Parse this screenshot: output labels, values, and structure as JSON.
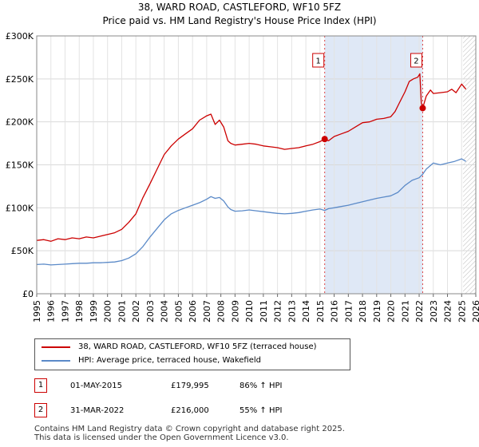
{
  "header": {
    "title": "38, WARD ROAD, CASTLEFORD, WF10 5FZ",
    "subtitle": "Price paid vs. HM Land Registry's House Price Index (HPI)"
  },
  "chart_data": {
    "type": "line",
    "title": "38, WARD ROAD, CASTLEFORD, WF10 5FZ",
    "subtitle": "Price paid vs. HM Land Registry's House Price Index (HPI)",
    "xlim": [
      1995,
      2026
    ],
    "ylim": [
      0,
      300000
    ],
    "x_ticks": [
      1995,
      1996,
      1997,
      1998,
      1999,
      2000,
      2001,
      2002,
      2003,
      2004,
      2005,
      2006,
      2007,
      2008,
      2009,
      2010,
      2011,
      2012,
      2013,
      2014,
      2015,
      2016,
      2017,
      2018,
      2019,
      2020,
      2021,
      2022,
      2023,
      2024,
      2025,
      2026
    ],
    "x_tick_labels": [
      "1995",
      "1996",
      "1997",
      "1998",
      "1999",
      "2000",
      "2001",
      "2002",
      "2003",
      "2004",
      "2005",
      "2006",
      "2007",
      "2008",
      "2009",
      "2010",
      "2011",
      "2012",
      "2013",
      "2014",
      "2015",
      "2016",
      "2017",
      "2018",
      "2019",
      "2020",
      "2021",
      "2022",
      "2023",
      "2024",
      "2025",
      "2026"
    ],
    "y_ticks": [
      0,
      50000,
      100000,
      150000,
      200000,
      250000,
      300000
    ],
    "y_tick_labels": [
      "£0",
      "£50K",
      "£100K",
      "£150K",
      "£200K",
      "£250K",
      "£300K"
    ],
    "grid": true,
    "shaded_period": [
      2015.33,
      2022.25
    ],
    "hatched_from": 2025.1,
    "series": [
      {
        "name": "38, WARD ROAD, CASTLEFORD, WF10 5FZ (terraced house)",
        "color": "#cc0000",
        "x": [
          1995,
          1995.5,
          1996,
          1996.5,
          1997,
          1997.5,
          1998,
          1998.5,
          1999,
          1999.5,
          2000,
          2000.5,
          2001,
          2001.5,
          2002,
          2002.5,
          2003,
          2003.5,
          2004,
          2004.5,
          2005,
          2005.5,
          2006,
          2006.5,
          2007,
          2007.3,
          2007.6,
          2007.9,
          2008.2,
          2008.5,
          2008.7,
          2009,
          2009.5,
          2010,
          2010.5,
          2011,
          2011.5,
          2012,
          2012.5,
          2013,
          2013.5,
          2014,
          2014.5,
          2015,
          2015.33,
          2015.6,
          2016,
          2016.5,
          2017,
          2017.5,
          2018,
          2018.5,
          2019,
          2019.5,
          2020,
          2020.3,
          2020.6,
          2021,
          2021.3,
          2021.6,
          2021.9,
          2022.05,
          2022.15,
          2022.25,
          2022.5,
          2022.8,
          2023,
          2023.5,
          2024,
          2024.3,
          2024.6,
          2025,
          2025.3
        ],
        "y": [
          62000,
          63000,
          61000,
          64000,
          63000,
          65000,
          64000,
          66000,
          65000,
          67000,
          69000,
          71000,
          75000,
          83000,
          93000,
          112000,
          128000,
          145000,
          162000,
          172000,
          180000,
          186000,
          192000,
          202000,
          207000,
          209000,
          197000,
          202000,
          194000,
          178000,
          175000,
          173000,
          174000,
          175000,
          174000,
          172000,
          171000,
          170000,
          168000,
          169000,
          170000,
          172000,
          174000,
          177000,
          179995,
          178000,
          183000,
          186000,
          189000,
          194000,
          199000,
          200000,
          203000,
          204000,
          206000,
          212000,
          222000,
          235000,
          247000,
          250000,
          252000,
          256000,
          222000,
          216000,
          230000,
          237000,
          233000,
          234000,
          235000,
          238000,
          234000,
          244000,
          238000
        ]
      },
      {
        "name": "HPI: Average price, terraced house, Wakefield",
        "color": "#5b8ac8",
        "x": [
          1995,
          1995.5,
          1996,
          1996.5,
          1997,
          1997.5,
          1998,
          1998.5,
          1999,
          1999.5,
          2000,
          2000.5,
          2001,
          2001.5,
          2002,
          2002.5,
          2003,
          2003.5,
          2004,
          2004.5,
          2005,
          2005.5,
          2006,
          2006.5,
          2007,
          2007.3,
          2007.6,
          2007.9,
          2008.2,
          2008.5,
          2008.7,
          2009,
          2009.5,
          2010,
          2010.5,
          2011,
          2011.5,
          2012,
          2012.5,
          2013,
          2013.5,
          2014,
          2014.5,
          2015,
          2015.33,
          2015.6,
          2016,
          2016.5,
          2017,
          2017.5,
          2018,
          2018.5,
          2019,
          2019.5,
          2020,
          2020.5,
          2021,
          2021.5,
          2022,
          2022.25,
          2022.5,
          2023,
          2023.5,
          2024,
          2024.5,
          2025,
          2025.3
        ],
        "y": [
          34000,
          34500,
          33500,
          34000,
          34500,
          35000,
          35500,
          35500,
          36000,
          36000,
          36500,
          37000,
          38500,
          41500,
          46500,
          55000,
          66000,
          76000,
          86000,
          93000,
          97000,
          100000,
          103000,
          106000,
          110000,
          113000,
          111000,
          112000,
          108000,
          101000,
          98000,
          96000,
          96500,
          97500,
          96500,
          95500,
          94500,
          93500,
          93000,
          93500,
          94500,
          96000,
          97500,
          98500,
          97000,
          99000,
          100000,
          101500,
          103000,
          105000,
          107000,
          109000,
          111000,
          112500,
          114000,
          118000,
          126000,
          132000,
          135000,
          139000,
          145000,
          152000,
          150000,
          152000,
          154000,
          157000,
          154000
        ]
      }
    ],
    "sales": [
      {
        "label": "1",
        "x": 2015.33,
        "y": 179995
      },
      {
        "label": "2",
        "x": 2022.25,
        "y": 216000
      }
    ]
  },
  "legend": {
    "items": [
      {
        "label": "38, WARD ROAD, CASTLEFORD, WF10 5FZ (terraced house)",
        "color": "#cc0000"
      },
      {
        "label": "HPI: Average price, terraced house, Wakefield",
        "color": "#5b8ac8"
      }
    ]
  },
  "sales_table": [
    {
      "num": "1",
      "date": "01-MAY-2015",
      "price": "£179,995",
      "hpi": "86% ↑ HPI"
    },
    {
      "num": "2",
      "date": "31-MAR-2022",
      "price": "£216,000",
      "hpi": "55% ↑ HPI"
    }
  ],
  "footer": {
    "line1": "Contains HM Land Registry data © Crown copyright and database right 2025.",
    "line2": "This data is licensed under the Open Government Licence v3.0."
  }
}
